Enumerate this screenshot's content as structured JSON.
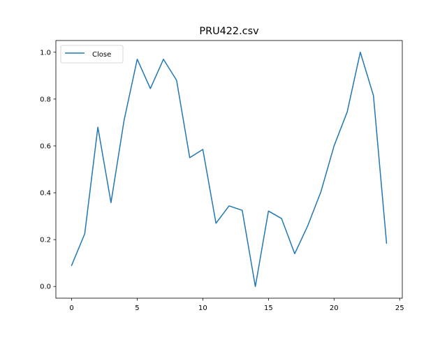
{
  "chart_data": {
    "type": "line",
    "title": "PRU422.csv",
    "xlabel": "",
    "ylabel": "",
    "x": [
      0,
      1,
      2,
      3,
      4,
      5,
      6,
      7,
      8,
      9,
      10,
      11,
      12,
      13,
      14,
      15,
      16,
      17,
      18,
      19,
      20,
      21,
      22,
      23,
      24
    ],
    "series": [
      {
        "name": "Close",
        "color": "#1f77b4",
        "values": [
          0.09,
          0.225,
          0.68,
          0.358,
          0.71,
          0.97,
          0.845,
          0.97,
          0.88,
          0.55,
          0.585,
          0.27,
          0.344,
          0.325,
          0.0,
          0.322,
          0.29,
          0.14,
          0.26,
          0.405,
          0.6,
          0.745,
          1.0,
          0.815,
          0.185
        ]
      }
    ],
    "xlim": [
      -1.2,
      25.2
    ],
    "ylim": [
      -0.05,
      1.05
    ],
    "xticks": [
      0,
      5,
      10,
      15,
      20,
      25
    ],
    "xtick_labels": [
      "0",
      "5",
      "10",
      "15",
      "20",
      "25"
    ],
    "yticks": [
      0.0,
      0.2,
      0.4,
      0.6,
      0.8,
      1.0
    ],
    "ytick_labels": [
      "0.0",
      "0.2",
      "0.4",
      "0.6",
      "0.8",
      "1.0"
    ],
    "grid": false,
    "legend_position": "upper-left"
  }
}
